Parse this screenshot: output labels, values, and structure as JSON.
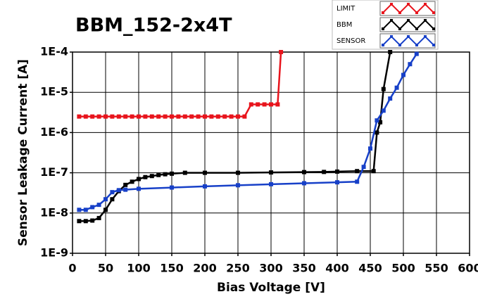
{
  "chart_data": {
    "type": "line",
    "title": "BBM_152-2x4T",
    "x_label": "Bias Voltage [V]",
    "y_label": "Sensor Leakage Current [A]",
    "log_y": true,
    "grid": true,
    "legend": "top-right",
    "xlim": [
      0,
      600
    ],
    "xticks": [
      0,
      50,
      100,
      150,
      200,
      250,
      300,
      350,
      400,
      450,
      500,
      550,
      600
    ],
    "ylim": [
      1e-09,
      0.0001
    ],
    "yticks": [
      {
        "value": 1e-09,
        "label": "1E-9"
      },
      {
        "value": 1e-08,
        "label": "1E-8"
      },
      {
        "value": 1e-07,
        "label": "1E-7"
      },
      {
        "value": 1e-06,
        "label": "1E-6"
      },
      {
        "value": 1e-05,
        "label": "1E-5"
      },
      {
        "value": 0.0001,
        "label": "1E-4"
      }
    ],
    "series": [
      {
        "name": "LIMIT",
        "color": "#e8141c",
        "x": [
          10,
          20,
          30,
          40,
          50,
          60,
          70,
          80,
          90,
          100,
          110,
          120,
          130,
          140,
          150,
          160,
          170,
          180,
          190,
          200,
          210,
          220,
          230,
          240,
          250,
          260,
          270,
          280,
          290,
          300,
          310,
          315
        ],
        "values": [
          2.5e-06,
          2.5e-06,
          2.5e-06,
          2.5e-06,
          2.5e-06,
          2.5e-06,
          2.5e-06,
          2.5e-06,
          2.5e-06,
          2.5e-06,
          2.5e-06,
          2.5e-06,
          2.5e-06,
          2.5e-06,
          2.5e-06,
          2.5e-06,
          2.5e-06,
          2.5e-06,
          2.5e-06,
          2.5e-06,
          2.5e-06,
          2.5e-06,
          2.5e-06,
          2.5e-06,
          2.5e-06,
          2.5e-06,
          5e-06,
          5e-06,
          5e-06,
          5e-06,
          5e-06,
          0.0001
        ]
      },
      {
        "name": "BBM",
        "color": "#000000",
        "x": [
          10,
          20,
          30,
          40,
          50,
          60,
          70,
          80,
          90,
          100,
          110,
          120,
          130,
          140,
          150,
          170,
          200,
          250,
          300,
          350,
          380,
          400,
          430,
          455,
          460,
          465,
          470,
          480
        ],
        "values": [
          6.3e-09,
          6.3e-09,
          6.5e-09,
          7.5e-09,
          1.2e-08,
          2.2e-08,
          3.5e-08,
          5e-08,
          6e-08,
          7e-08,
          7.8e-08,
          8.3e-08,
          8.8e-08,
          9.2e-08,
          9.5e-08,
          1e-07,
          1e-07,
          1e-07,
          1.02e-07,
          1.04e-07,
          1.05e-07,
          1.07e-07,
          1.1e-07,
          1.1e-07,
          1e-06,
          1.8e-06,
          1.2e-05,
          0.0001
        ]
      },
      {
        "name": "SENSOR",
        "color": "#1740c8",
        "x": [
          10,
          20,
          30,
          40,
          50,
          60,
          70,
          80,
          100,
          150,
          200,
          250,
          300,
          350,
          400,
          430,
          440,
          450,
          460,
          470,
          480,
          490,
          500,
          510,
          520
        ],
        "values": [
          1.2e-08,
          1.2e-08,
          1.4e-08,
          1.6e-08,
          2.2e-08,
          3.3e-08,
          3.7e-08,
          3.8e-08,
          4e-08,
          4.3e-08,
          4.6e-08,
          4.9e-08,
          5.2e-08,
          5.5e-08,
          5.8e-08,
          6e-08,
          1.4e-07,
          4e-07,
          2e-06,
          3.5e-06,
          7e-06,
          1.3e-05,
          2.7e-05,
          5e-05,
          9e-05
        ]
      }
    ]
  }
}
